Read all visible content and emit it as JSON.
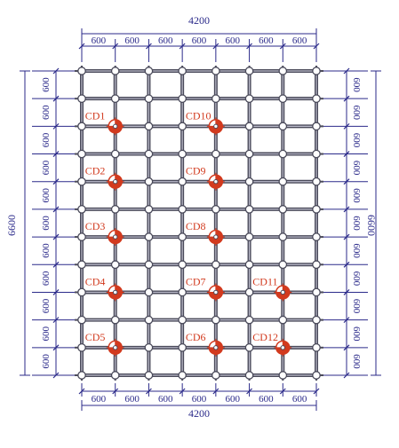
{
  "dimensions": {
    "top_total": "4200",
    "bottom_total": "4200",
    "left_total": "6600",
    "right_total": "6600",
    "column_spacing": [
      "600",
      "600",
      "600",
      "600",
      "600",
      "600",
      "600"
    ],
    "row_spacing": [
      "600",
      "600",
      "600",
      "600",
      "600",
      "600",
      "600",
      "600",
      "600",
      "600",
      "600"
    ]
  },
  "grid": {
    "columns": 7,
    "rows": 11
  },
  "monitoring_points": [
    {
      "label": "CD1",
      "col": 1,
      "row": 2
    },
    {
      "label": "CD10",
      "col": 4,
      "row": 2
    },
    {
      "label": "CD2",
      "col": 1,
      "row": 4
    },
    {
      "label": "CD9",
      "col": 4,
      "row": 4
    },
    {
      "label": "CD3",
      "col": 1,
      "row": 6
    },
    {
      "label": "CD8",
      "col": 4,
      "row": 6
    },
    {
      "label": "CD4",
      "col": 1,
      "row": 8
    },
    {
      "label": "CD7",
      "col": 4,
      "row": 8
    },
    {
      "label": "CD11",
      "col": 6,
      "row": 8
    },
    {
      "label": "CD5",
      "col": 1,
      "row": 10
    },
    {
      "label": "CD6",
      "col": 4,
      "row": 10
    },
    {
      "label": "CD12",
      "col": 6,
      "row": 10
    }
  ],
  "colors": {
    "dimension": "#2b2a8a",
    "frame": "#4a4a5a",
    "frame_light": "#bdbdcc",
    "node": "#ffffff",
    "marker": "#d23a1e"
  }
}
